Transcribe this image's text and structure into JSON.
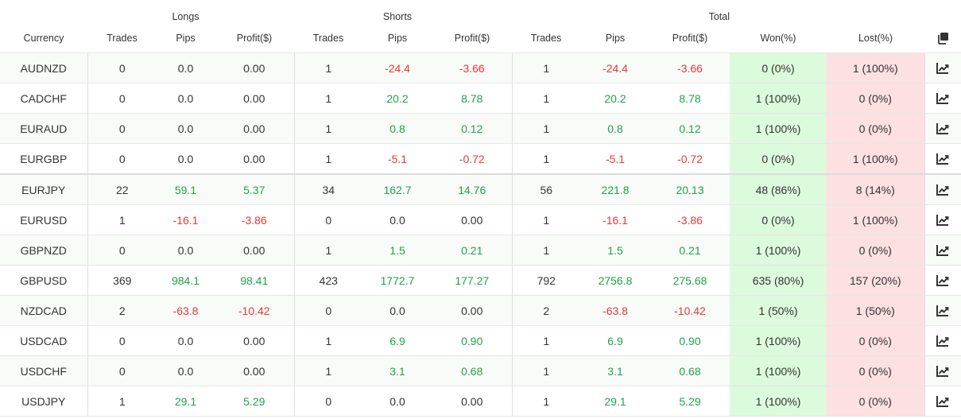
{
  "header": {
    "groups": {
      "longs": "Longs",
      "shorts": "Shorts",
      "total": "Total"
    },
    "columns": {
      "currency": "Currency",
      "long_trades": "Trades",
      "long_pips": "Pips",
      "long_profit": "Profit($)",
      "short_trades": "Trades",
      "short_pips": "Pips",
      "short_profit": "Profit($)",
      "total_trades": "Trades",
      "total_pips": "Pips",
      "total_profit": "Profit($)",
      "won": "Won(%)",
      "lost": "Lost(%)"
    },
    "copy_icon": "copy-icon"
  },
  "colors": {
    "positive": "#1fa34a",
    "negative": "#e53935",
    "won_bg": "#dcfadc",
    "lost_bg": "#fde0e2"
  },
  "row_icon": "chart-line-icon",
  "rows": [
    {
      "currency": "AUDNZD",
      "long_trades": "0",
      "long_pips": "0.0",
      "long_profit": "0.00",
      "short_trades": "1",
      "short_pips": "-24.4",
      "short_profit": "-3.66",
      "total_trades": "1",
      "total_pips": "-24.4",
      "total_profit": "-3.66",
      "won": "0 (0%)",
      "lost": "1 (100%)"
    },
    {
      "currency": "CADCHF",
      "long_trades": "0",
      "long_pips": "0.0",
      "long_profit": "0.00",
      "short_trades": "1",
      "short_pips": "20.2",
      "short_profit": "8.78",
      "total_trades": "1",
      "total_pips": "20.2",
      "total_profit": "8.78",
      "won": "1 (100%)",
      "lost": "0 (0%)"
    },
    {
      "currency": "EURAUD",
      "long_trades": "0",
      "long_pips": "0.0",
      "long_profit": "0.00",
      "short_trades": "1",
      "short_pips": "0.8",
      "short_profit": "0.12",
      "total_trades": "1",
      "total_pips": "0.8",
      "total_profit": "0.12",
      "won": "1 (100%)",
      "lost": "0 (0%)"
    },
    {
      "currency": "EURGBP",
      "long_trades": "0",
      "long_pips": "0.0",
      "long_profit": "0.00",
      "short_trades": "1",
      "short_pips": "-5.1",
      "short_profit": "-0.72",
      "total_trades": "1",
      "total_pips": "-5.1",
      "total_profit": "-0.72",
      "won": "0 (0%)",
      "lost": "1 (100%)"
    },
    {
      "currency": "EURJPY",
      "long_trades": "22",
      "long_pips": "59.1",
      "long_profit": "5.37",
      "short_trades": "34",
      "short_pips": "162.7",
      "short_profit": "14.76",
      "total_trades": "56",
      "total_pips": "221.8",
      "total_profit": "20.13",
      "won": "48 (86%)",
      "lost": "8 (14%)"
    },
    {
      "currency": "EURUSD",
      "long_trades": "1",
      "long_pips": "-16.1",
      "long_profit": "-3.86",
      "short_trades": "0",
      "short_pips": "0.0",
      "short_profit": "0.00",
      "total_trades": "1",
      "total_pips": "-16.1",
      "total_profit": "-3.86",
      "won": "0 (0%)",
      "lost": "1 (100%)"
    },
    {
      "currency": "GBPNZD",
      "long_trades": "0",
      "long_pips": "0.0",
      "long_profit": "0.00",
      "short_trades": "1",
      "short_pips": "1.5",
      "short_profit": "0.21",
      "total_trades": "1",
      "total_pips": "1.5",
      "total_profit": "0.21",
      "won": "1 (100%)",
      "lost": "0 (0%)"
    },
    {
      "currency": "GBPUSD",
      "long_trades": "369",
      "long_pips": "984.1",
      "long_profit": "98.41",
      "short_trades": "423",
      "short_pips": "1772.7",
      "short_profit": "177.27",
      "total_trades": "792",
      "total_pips": "2756.8",
      "total_profit": "275.68",
      "won": "635 (80%)",
      "lost": "157 (20%)"
    },
    {
      "currency": "NZDCAD",
      "long_trades": "2",
      "long_pips": "-63.8",
      "long_profit": "-10.42",
      "short_trades": "0",
      "short_pips": "0.0",
      "short_profit": "0.00",
      "total_trades": "2",
      "total_pips": "-63.8",
      "total_profit": "-10.42",
      "won": "1 (50%)",
      "lost": "1 (50%)"
    },
    {
      "currency": "USDCAD",
      "long_trades": "0",
      "long_pips": "0.0",
      "long_profit": "0.00",
      "short_trades": "1",
      "short_pips": "6.9",
      "short_profit": "0.90",
      "total_trades": "1",
      "total_pips": "6.9",
      "total_profit": "0.90",
      "won": "1 (100%)",
      "lost": "0 (0%)"
    },
    {
      "currency": "USDCHF",
      "long_trades": "0",
      "long_pips": "0.0",
      "long_profit": "0.00",
      "short_trades": "1",
      "short_pips": "3.1",
      "short_profit": "0.68",
      "total_trades": "1",
      "total_pips": "3.1",
      "total_profit": "0.68",
      "won": "1 (100%)",
      "lost": "0 (0%)"
    },
    {
      "currency": "USDJPY",
      "long_trades": "1",
      "long_pips": "29.1",
      "long_profit": "5.29",
      "short_trades": "0",
      "short_pips": "0.0",
      "short_profit": "0.00",
      "total_trades": "1",
      "total_pips": "29.1",
      "total_profit": "5.29",
      "won": "1 (100%)",
      "lost": "0 (0%)"
    }
  ]
}
